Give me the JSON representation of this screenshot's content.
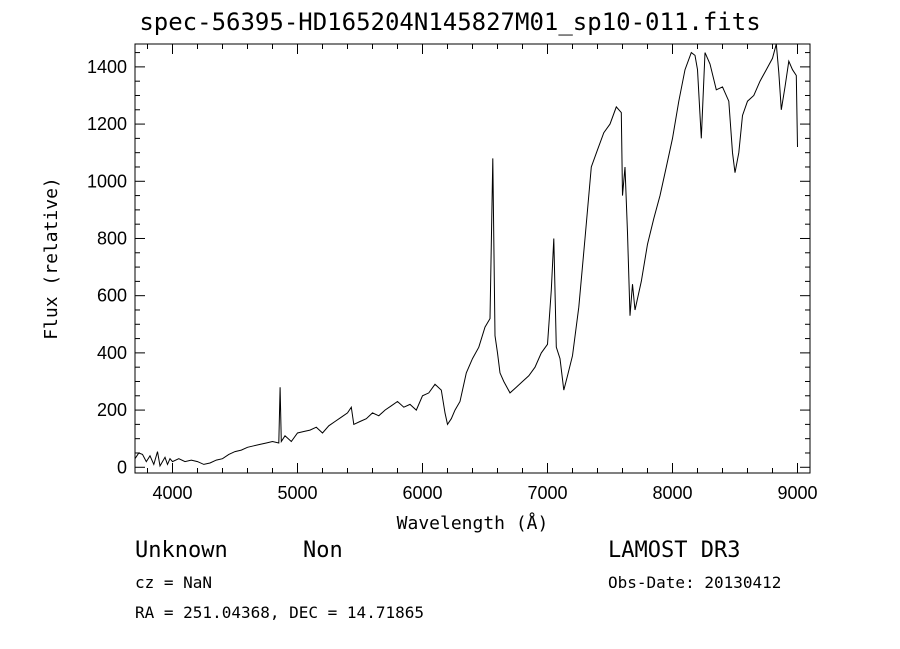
{
  "header": {
    "title": "spec-56395-HD165204N145827M01_sp10-011.fits"
  },
  "info": {
    "class": "Unknown",
    "subclass": "Non",
    "cz": "cz = NaN",
    "coords": "RA = 251.04368, DEC =  14.71865",
    "survey": "LAMOST DR3",
    "obsdate": "Obs-Date: 20130412"
  },
  "chart_data": {
    "type": "line",
    "title": "spec-56395-HD165204N145827M01_sp10-011.fits",
    "xlabel": "Wavelength (Å)",
    "ylabel": "Flux (relative)",
    "xlim": [
      3700,
      9100
    ],
    "ylim": [
      -20,
      1480
    ],
    "xticks": [
      4000,
      5000,
      6000,
      7000,
      8000,
      9000
    ],
    "yticks": [
      0,
      200,
      400,
      600,
      800,
      1000,
      1200,
      1400
    ],
    "grid": false,
    "line_color": "#000000",
    "series": [
      {
        "x": [
          3700,
          3730,
          3760,
          3790,
          3820,
          3850,
          3880,
          3900,
          3920,
          3940,
          3960,
          3980,
          4000,
          4050,
          4100,
          4150,
          4200,
          4250,
          4300,
          4350,
          4400,
          4450,
          4500,
          4550,
          4600,
          4650,
          4700,
          4750,
          4800,
          4850,
          4861,
          4870,
          4900,
          4950,
          5000,
          5050,
          5100,
          5150,
          5200,
          5250,
          5300,
          5350,
          5400,
          5430,
          5450,
          5500,
          5550,
          5600,
          5650,
          5700,
          5750,
          5800,
          5850,
          5900,
          5950,
          6000,
          6050,
          6100,
          6150,
          6180,
          6200,
          6230,
          6260,
          6300,
          6350,
          6400,
          6450,
          6500,
          6540,
          6562,
          6580,
          6600,
          6620,
          6650,
          6700,
          6750,
          6800,
          6850,
          6900,
          6950,
          7000,
          7030,
          7050,
          7070,
          7100,
          7130,
          7160,
          7200,
          7250,
          7300,
          7350,
          7400,
          7450,
          7500,
          7550,
          7590,
          7600,
          7620,
          7640,
          7660,
          7680,
          7700,
          7750,
          7800,
          7850,
          7900,
          7950,
          8000,
          8050,
          8100,
          8150,
          8180,
          8200,
          8230,
          8260,
          8300,
          8350,
          8400,
          8450,
          8480,
          8500,
          8530,
          8560,
          8600,
          8650,
          8700,
          8750,
          8800,
          8830,
          8850,
          8870,
          8900,
          8930,
          8960,
          8990,
          9000
        ],
        "y": [
          30,
          50,
          45,
          20,
          40,
          10,
          55,
          5,
          20,
          35,
          10,
          30,
          20,
          30,
          20,
          25,
          20,
          10,
          15,
          25,
          30,
          45,
          55,
          60,
          70,
          75,
          80,
          85,
          90,
          85,
          280,
          90,
          110,
          90,
          120,
          125,
          130,
          140,
          120,
          145,
          160,
          175,
          190,
          210,
          150,
          160,
          170,
          190,
          180,
          200,
          215,
          230,
          210,
          220,
          200,
          250,
          260,
          290,
          270,
          190,
          150,
          170,
          200,
          230,
          330,
          380,
          420,
          490,
          520,
          1080,
          460,
          400,
          330,
          300,
          260,
          280,
          300,
          320,
          350,
          400,
          430,
          620,
          800,
          420,
          380,
          270,
          320,
          390,
          560,
          800,
          1050,
          1110,
          1170,
          1200,
          1260,
          1240,
          950,
          1050,
          820,
          530,
          640,
          550,
          650,
          780,
          870,
          950,
          1050,
          1150,
          1280,
          1390,
          1450,
          1440,
          1390,
          1150,
          1450,
          1410,
          1320,
          1330,
          1280,
          1100,
          1030,
          1100,
          1230,
          1280,
          1300,
          1350,
          1390,
          1430,
          1490,
          1380,
          1250,
          1330,
          1420,
          1390,
          1370,
          1120
        ]
      }
    ]
  }
}
